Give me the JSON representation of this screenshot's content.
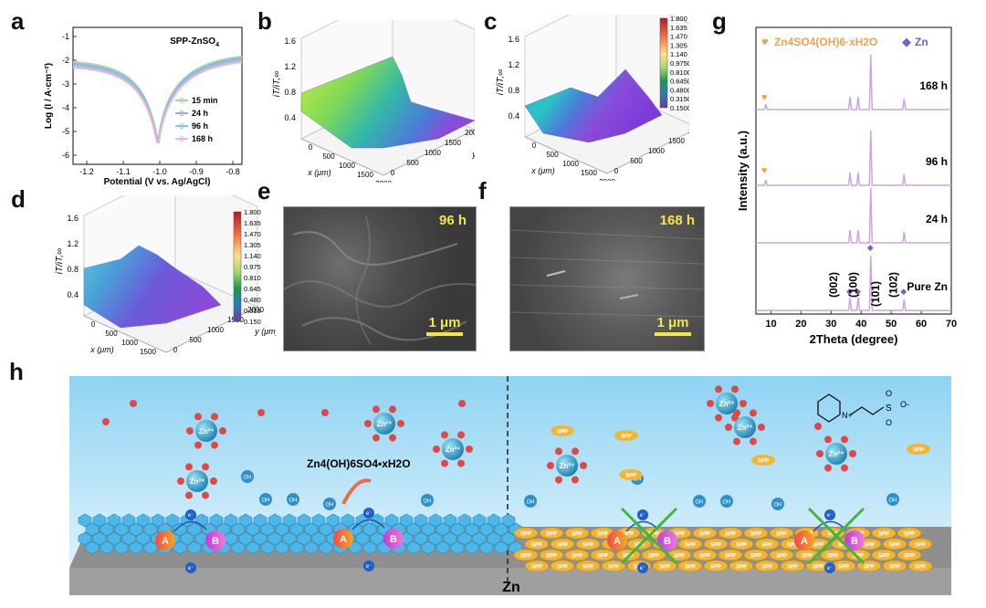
{
  "panels": {
    "a": "a",
    "b": "b",
    "c": "c",
    "d": "d",
    "e": "e",
    "f": "f",
    "g": "g",
    "h": "h"
  },
  "panel_a": {
    "title": "SPP-ZnSO4",
    "title_base": "SPP-ZnSO",
    "title_sub": "4",
    "ylabel": "Log (I / A·cm⁻²)",
    "xlabel": "Potential (V vs. Ag/AgCl)",
    "xticks": [
      "-1.2",
      "-1.1",
      "-1.0",
      "-0.9",
      "-0.8"
    ],
    "yticks": [
      "-1",
      "-2",
      "-3",
      "-4",
      "-5",
      "-6"
    ],
    "legend": [
      {
        "label": "15 min",
        "color": "#9fd9a8"
      },
      {
        "label": "24 h",
        "color": "#a9a6e8"
      },
      {
        "label": "96 h",
        "color": "#86c8e8"
      },
      {
        "label": "168 h",
        "color": "#f2b6c8"
      }
    ]
  },
  "panel_3d": {
    "zlabel": "iT/iT,∞",
    "zticks": [
      "0.4",
      "0.8",
      "1.2",
      "1.6"
    ],
    "xlabel": "x (μm)",
    "ylabel": "y (μm)",
    "xticks": [
      "0",
      "500",
      "1000",
      "1500",
      "2000"
    ],
    "yticks": [
      "0",
      "500",
      "1000",
      "1500",
      "2000"
    ],
    "colorbar": [
      "1.800",
      "1.635",
      "1.470",
      "1.305",
      "1.140",
      "0.9750",
      "0.8100",
      "0.6450",
      "0.4800",
      "0.3150",
      "0.1500"
    ],
    "colorbar_d": [
      "1.800",
      "1.635",
      "1.470",
      "1.305",
      "1.140",
      "0.975",
      "0.810",
      "0.645",
      "0.480",
      "0.315",
      "0.150"
    ]
  },
  "panel_e": {
    "time": "96 h",
    "scale": "1 μm"
  },
  "panel_f": {
    "time": "168 h",
    "scale": "1 μm"
  },
  "panel_g": {
    "legend_compound": "Zn4SO4(OH)6·xH2O",
    "legend_zn": "Zn",
    "ylabel": "Intensity (a.u.)",
    "xlabel": "2Theta (degree)",
    "xticks": [
      "10",
      "20",
      "30",
      "40",
      "50",
      "60",
      "70"
    ],
    "traces": [
      "168 h",
      "96 h",
      "24 h",
      "Pure Zn"
    ],
    "peaks": [
      "(002)",
      "(100)",
      "(101)",
      "(102)"
    ],
    "colors": {
      "trace": "#c9a6de",
      "compound": "#f0a04b",
      "zn": "#7b5cc9"
    }
  },
  "panel_h": {
    "compound_label": "Zn4(OH)6SO4•xH2O",
    "substrate_label": "Zn",
    "ion": "Zn²⁺",
    "hydroxide": "OH",
    "electron": "e⁻",
    "site_a": "A",
    "site_b": "B",
    "additive": "SPP",
    "molecule_cation": "N+",
    "molecule_anion": "O-",
    "molecule_s": "S",
    "molecule_o": "O"
  }
}
